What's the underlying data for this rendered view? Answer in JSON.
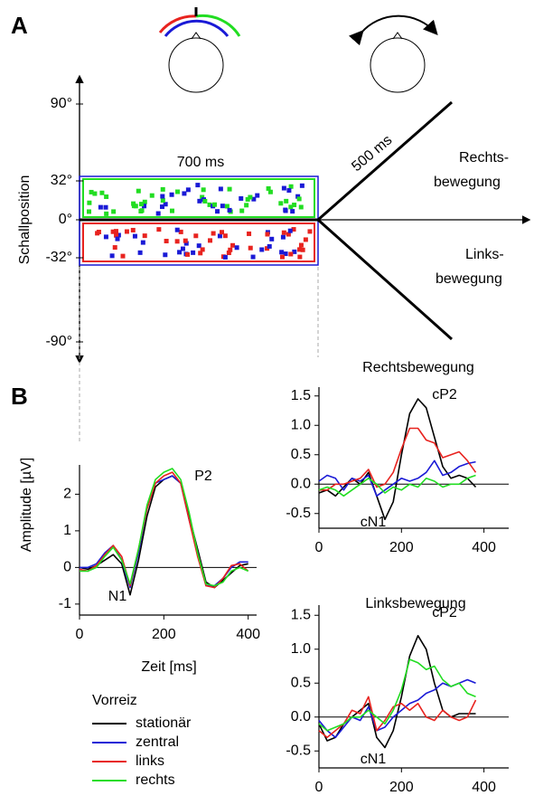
{
  "panel_labels": [
    "A",
    "B"
  ],
  "diagram": {
    "y_axis_label": "Schallposition",
    "yticks": [
      "90°",
      "32°",
      "0°",
      "-32°",
      "-90°"
    ],
    "stationary_duration": "700 ms",
    "motion_duration": "500 ms",
    "right_motion": [
      "Rechts-",
      "bewegung"
    ],
    "left_motion": [
      "Links-",
      "bewegung"
    ]
  },
  "chart_data": [
    {
      "type": "line",
      "x_label": "Zeit [ms]",
      "y_label": "Amplitude [µV]",
      "x": [
        0,
        20,
        40,
        60,
        80,
        100,
        120,
        140,
        160,
        180,
        200,
        220,
        240,
        260,
        280,
        300,
        320,
        340,
        360,
        380,
        400
      ],
      "xlim": [
        0,
        420
      ],
      "xticks": [
        0,
        200,
        400
      ],
      "ylim": [
        -1.3,
        2.8
      ],
      "yticks": [
        -1,
        0,
        1,
        2
      ],
      "annotations": [
        "P2",
        "N1"
      ],
      "legend_title": "Vorreiz",
      "series": [
        {
          "name": "stationär",
          "color": "#000000",
          "values": [
            0,
            -0.05,
            0.05,
            0.2,
            0.35,
            0.1,
            -0.75,
            0.2,
            1.4,
            2.2,
            2.4,
            2.5,
            2.3,
            1.4,
            0.5,
            -0.4,
            -0.55,
            -0.35,
            -0.15,
            0.05,
            0.1
          ]
        },
        {
          "name": "zentral",
          "color": "#1a1ad6",
          "values": [
            0,
            0,
            0.1,
            0.4,
            0.6,
            0.2,
            -0.55,
            0.4,
            1.6,
            2.3,
            2.4,
            2.5,
            2.3,
            1.3,
            0.4,
            -0.5,
            -0.5,
            -0.3,
            0,
            0.15,
            0.15
          ]
        },
        {
          "name": "links",
          "color": "#e8231f",
          "values": [
            -0.05,
            -0.1,
            0.05,
            0.35,
            0.6,
            0.3,
            -0.5,
            0.5,
            1.6,
            2.3,
            2.5,
            2.6,
            2.3,
            1.3,
            0.3,
            -0.5,
            -0.55,
            -0.3,
            0.05,
            0.1,
            -0.1
          ]
        },
        {
          "name": "rechts",
          "color": "#22dd22",
          "values": [
            -0.1,
            -0.1,
            0,
            0.3,
            0.55,
            0.2,
            -0.45,
            0.5,
            1.7,
            2.4,
            2.6,
            2.7,
            2.4,
            1.5,
            0.4,
            -0.45,
            -0.5,
            -0.4,
            -0.1,
            0,
            -0.1
          ]
        }
      ]
    },
    {
      "type": "line",
      "title": "Rechtsbewegung",
      "x": [
        0,
        20,
        40,
        60,
        80,
        100,
        120,
        140,
        160,
        180,
        200,
        220,
        240,
        260,
        280,
        300,
        320,
        340,
        360,
        380,
        400
      ],
      "xlim": [
        0,
        460
      ],
      "xticks": [
        0,
        200,
        400
      ],
      "ylim": [
        -0.75,
        1.65
      ],
      "yticks": [
        -0.5,
        {
          "value": 0,
          "label": "0.0"
        },
        0.5,
        {
          "value": 1,
          "label": "1.0"
        },
        1.5
      ],
      "annotations": [
        "cP2",
        "cN1"
      ],
      "series": [
        {
          "name": "stationär",
          "color": "#000000",
          "values": [
            -0.15,
            -0.1,
            -0.2,
            -0.05,
            0.1,
            0,
            0.2,
            -0.2,
            -0.6,
            -0.3,
            0.5,
            1.2,
            1.45,
            1.3,
            0.8,
            0.3,
            0.1,
            0.15,
            0.1,
            -0.05,
            null
          ]
        },
        {
          "name": "zentral",
          "color": "#1a1ad6",
          "values": [
            0.05,
            0.15,
            0.1,
            -0.1,
            0.1,
            0.05,
            0.15,
            -0.2,
            -0.1,
            0,
            0.1,
            0.05,
            0.1,
            0.2,
            0.4,
            0.15,
            0.2,
            0.3,
            0.35,
            0.38,
            null
          ]
        },
        {
          "name": "links",
          "color": "#e8231f",
          "values": [
            -0.1,
            -0.1,
            0,
            0,
            0.05,
            0.1,
            0.25,
            -0.05,
            0,
            0.2,
            0.6,
            0.95,
            0.95,
            0.75,
            0.7,
            0.45,
            0.5,
            0.55,
            0.4,
            0.2,
            null
          ]
        },
        {
          "name": "rechts",
          "color": "#22dd22",
          "values": [
            -0.1,
            -0.05,
            -0.1,
            -0.2,
            -0.1,
            0,
            0.1,
            0,
            -0.15,
            -0.05,
            -0.1,
            0,
            -0.05,
            0.1,
            0.05,
            -0.05,
            0,
            0,
            0.1,
            0.15,
            null
          ]
        }
      ]
    },
    {
      "type": "line",
      "title": "Linksbewegung",
      "x": [
        0,
        20,
        40,
        60,
        80,
        100,
        120,
        140,
        160,
        180,
        200,
        220,
        240,
        260,
        280,
        300,
        320,
        340,
        360,
        380,
        400
      ],
      "xlim": [
        0,
        460
      ],
      "xticks": [
        0,
        200,
        400
      ],
      "ylim": [
        -0.75,
        1.65
      ],
      "yticks": [
        -0.5,
        {
          "value": 0,
          "label": "0.0"
        },
        0.5,
        {
          "value": 1,
          "label": "1.0"
        },
        1.5
      ],
      "annotations": [
        "cP2",
        "cN1"
      ],
      "series": [
        {
          "name": "stationär",
          "color": "#000000",
          "values": [
            -0.1,
            -0.35,
            -0.3,
            -0.1,
            0,
            0.1,
            0.2,
            -0.3,
            -0.45,
            -0.2,
            0.3,
            0.9,
            1.2,
            1,
            0.5,
            0.1,
            0,
            0.05,
            0.05,
            0.05,
            null
          ]
        },
        {
          "name": "zentral",
          "color": "#1a1ad6",
          "values": [
            -0.05,
            -0.2,
            -0.3,
            -0.15,
            0,
            -0.05,
            0.15,
            -0.2,
            -0.15,
            0,
            0.1,
            0.2,
            0.25,
            0.35,
            0.4,
            0.5,
            0.45,
            0.5,
            0.55,
            0.5,
            null
          ]
        },
        {
          "name": "links",
          "color": "#e8231f",
          "values": [
            -0.2,
            -0.3,
            -0.2,
            -0.1,
            0.1,
            0.05,
            0.3,
            -0.2,
            -0.05,
            0.15,
            0.2,
            0.1,
            0.2,
            0,
            -0.05,
            0.1,
            0,
            -0.05,
            0,
            0.25,
            null
          ]
        },
        {
          "name": "rechts",
          "color": "#22dd22",
          "values": [
            -0.1,
            -0.2,
            -0.15,
            -0.1,
            0,
            0,
            0.1,
            0,
            -0.1,
            0.1,
            0.4,
            0.85,
            0.8,
            0.7,
            0.75,
            0.55,
            0.45,
            0.5,
            0.35,
            0.3,
            null
          ]
        }
      ]
    }
  ]
}
